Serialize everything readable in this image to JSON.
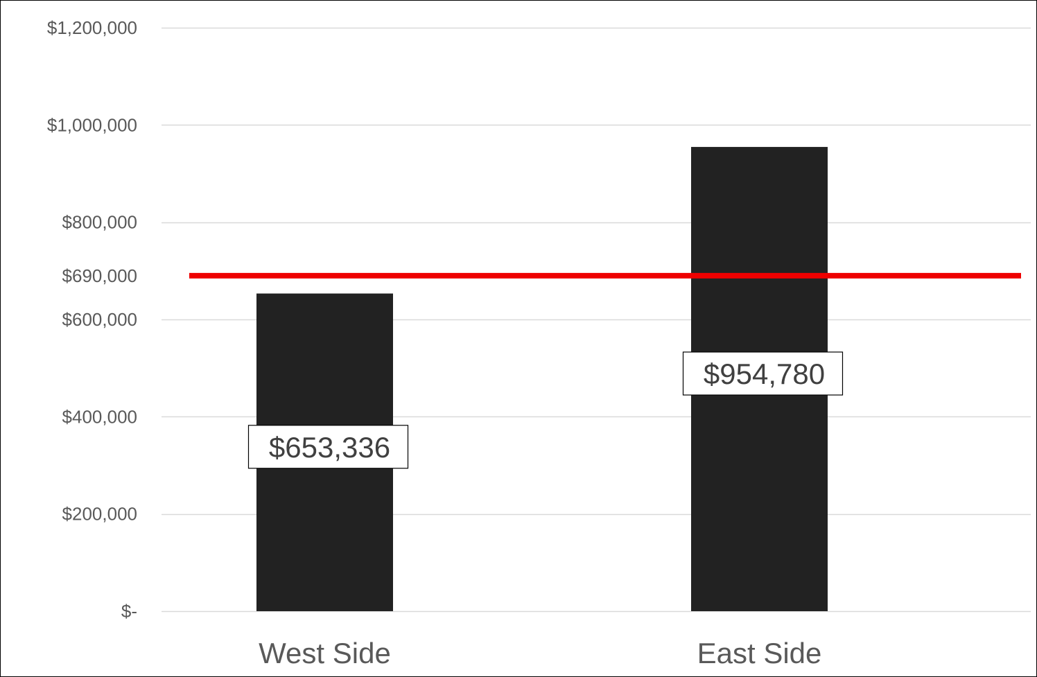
{
  "chart_data": {
    "type": "bar",
    "categories": [
      "West Side",
      "East Side"
    ],
    "values": [
      653336,
      954780
    ],
    "data_labels": [
      "$653,336",
      "$954,780"
    ],
    "ylim": [
      0,
      1200000
    ],
    "yticks": [
      {
        "value": 0,
        "label": "$-"
      },
      {
        "value": 200000,
        "label": "$200,000"
      },
      {
        "value": 400000,
        "label": "$400,000"
      },
      {
        "value": 600000,
        "label": "$600,000"
      },
      {
        "value": 690000,
        "label": "$690,000"
      },
      {
        "value": 800000,
        "label": "$800,000"
      },
      {
        "value": 1000000,
        "label": "$1,000,000"
      },
      {
        "value": 1200000,
        "label": "$1,200,000"
      }
    ],
    "gridlines": [
      0,
      200000,
      400000,
      600000,
      800000,
      1000000,
      1200000
    ],
    "reference_line": {
      "value": 690000,
      "color": "#ee0000"
    },
    "bar_color": "#222222",
    "grid_color": "#d9d9d9",
    "grid": true,
    "legend": "none"
  }
}
